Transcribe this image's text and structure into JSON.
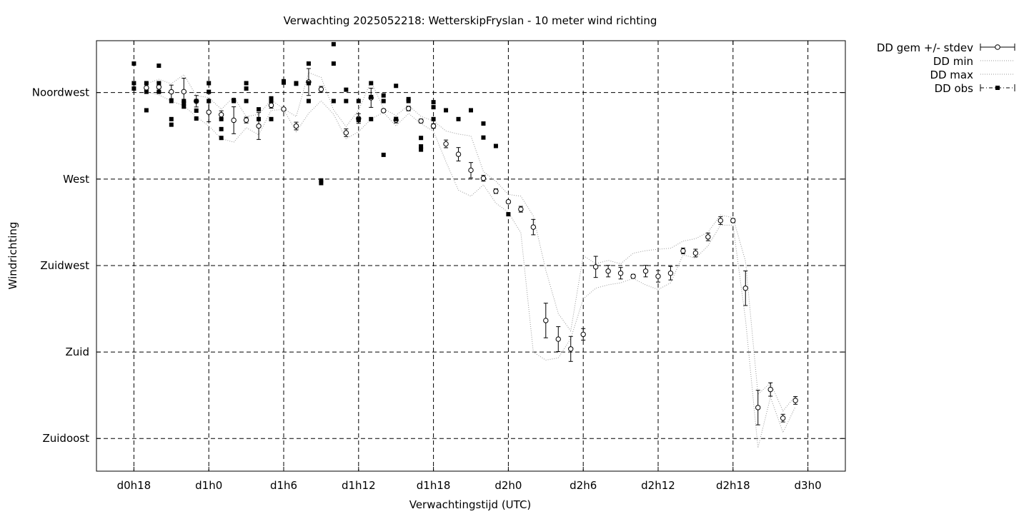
{
  "chart_data": {
    "type": "line",
    "title": "Verwachting 2025052218: WetterskipFryslan - 10 meter wind richting",
    "xlabel": "Verwachtingstijd (UTC)",
    "ylabel": "Windrichting",
    "xlim": [
      -3,
      57
    ],
    "ylim": [
      118,
      342
    ],
    "x_ticks": [
      {
        "x": 0,
        "label": "d0h18"
      },
      {
        "x": 6,
        "label": "d1h0"
      },
      {
        "x": 12,
        "label": "d1h6"
      },
      {
        "x": 18,
        "label": "d1h12"
      },
      {
        "x": 24,
        "label": "d1h18"
      },
      {
        "x": 30,
        "label": "d2h0"
      },
      {
        "x": 36,
        "label": "d2h6"
      },
      {
        "x": 42,
        "label": "d2h12"
      },
      {
        "x": 48,
        "label": "d2h18"
      },
      {
        "x": 54,
        "label": "d3h0"
      }
    ],
    "y_ticks": [
      {
        "y": 135,
        "label": "Zuidoost"
      },
      {
        "y": 180,
        "label": "Zuid"
      },
      {
        "y": 225,
        "label": "Zuidwest"
      },
      {
        "y": 270,
        "label": "West"
      },
      {
        "y": 315,
        "label": "Noordwest"
      }
    ],
    "grid": true,
    "legend_position": "outside-top-right",
    "legend": [
      "DD gem +/- stdev",
      "DD min",
      "DD max",
      "DD obs"
    ],
    "series": [
      {
        "name": "DD gem +/- stdev",
        "style": "circles with error bars",
        "points": [
          {
            "x": 1,
            "y": 317.5,
            "sd": 1.5
          },
          {
            "x": 2,
            "y": 317.9,
            "sd": 2.5
          },
          {
            "x": 3,
            "y": 315.4,
            "sd": 3.5
          },
          {
            "x": 4,
            "y": 315.5,
            "sd": 7
          },
          {
            "x": 5,
            "y": 310.5,
            "sd": 3
          },
          {
            "x": 6,
            "y": 304.8,
            "sd": 5
          },
          {
            "x": 7,
            "y": 303.5,
            "sd": 2
          },
          {
            "x": 8,
            "y": 300.6,
            "sd": 7
          },
          {
            "x": 9,
            "y": 300.7,
            "sd": 1.5
          },
          {
            "x": 10,
            "y": 297.6,
            "sd": 7
          },
          {
            "x": 11,
            "y": 308.4,
            "sd": 1.5
          },
          {
            "x": 12,
            "y": 306.4,
            "sd": 0.2
          },
          {
            "x": 13,
            "y": 297.6,
            "sd": 2
          },
          {
            "x": 14,
            "y": 320.5,
            "sd": 7
          },
          {
            "x": 15,
            "y": 316.7,
            "sd": 1.5
          },
          {
            "x": 17,
            "y": 294.1,
            "sd": 2
          },
          {
            "x": 18,
            "y": 301.5,
            "sd": 2.5
          },
          {
            "x": 19,
            "y": 312.3,
            "sd": 5
          },
          {
            "x": 20,
            "y": 305.6,
            "sd": 0.8
          },
          {
            "x": 21,
            "y": 300.7,
            "sd": 1.5
          },
          {
            "x": 22,
            "y": 306.7,
            "sd": 1.2
          },
          {
            "x": 23,
            "y": 300.2,
            "sd": 1
          },
          {
            "x": 24,
            "y": 297.6,
            "sd": 1.2
          },
          {
            "x": 25,
            "y": 288.3,
            "sd": 2
          },
          {
            "x": 26,
            "y": 282.9,
            "sd": 3.5
          },
          {
            "x": 27,
            "y": 274.6,
            "sd": 4
          },
          {
            "x": 28,
            "y": 270.4,
            "sd": 1.5
          },
          {
            "x": 29,
            "y": 263.7,
            "sd": 1.2
          },
          {
            "x": 30,
            "y": 258.2,
            "sd": 0.8
          },
          {
            "x": 31,
            "y": 254.3,
            "sd": 1.5
          },
          {
            "x": 32,
            "y": 245.0,
            "sd": 4
          },
          {
            "x": 33,
            "y": 196.4,
            "sd": 9
          },
          {
            "x": 34,
            "y": 186.7,
            "sd": 6.5
          },
          {
            "x": 35,
            "y": 181.6,
            "sd": 6.5
          },
          {
            "x": 36,
            "y": 189.2,
            "sd": 3
          },
          {
            "x": 37,
            "y": 224.3,
            "sd": 5.5
          },
          {
            "x": 38,
            "y": 222.1,
            "sd": 3
          },
          {
            "x": 39,
            "y": 221.0,
            "sd": 3
          },
          {
            "x": 40,
            "y": 219.4,
            "sd": 1
          },
          {
            "x": 41,
            "y": 222.1,
            "sd": 3
          },
          {
            "x": 42,
            "y": 219.4,
            "sd": 3
          },
          {
            "x": 43,
            "y": 221.0,
            "sd": 3.5
          },
          {
            "x": 44,
            "y": 232.6,
            "sd": 1.5
          },
          {
            "x": 45,
            "y": 231.5,
            "sd": 2
          },
          {
            "x": 46,
            "y": 239.9,
            "sd": 2
          },
          {
            "x": 47,
            "y": 248.4,
            "sd": 2
          },
          {
            "x": 48,
            "y": 248.4,
            "sd": 1
          },
          {
            "x": 49,
            "y": 213.2,
            "sd": 9
          },
          {
            "x": 50,
            "y": 151.1,
            "sd": 9
          },
          {
            "x": 51,
            "y": 160.5,
            "sd": 3.5
          },
          {
            "x": 52,
            "y": 145.6,
            "sd": 2
          },
          {
            "x": 53,
            "y": 154.8,
            "sd": 2
          }
        ]
      },
      {
        "name": "DD min",
        "style": "dotted",
        "x": [
          1,
          2,
          3,
          4,
          5,
          6,
          7,
          8,
          9,
          10,
          11,
          12,
          13,
          14,
          15,
          16,
          17,
          18,
          19,
          20,
          21,
          22,
          23,
          24,
          25,
          26,
          27,
          28,
          29,
          30,
          31,
          32,
          33,
          34,
          35,
          36,
          37,
          38,
          39,
          40,
          41,
          42,
          43,
          44,
          45,
          46,
          47,
          48,
          49,
          50,
          51,
          52,
          53
        ],
        "y": [
          315.4,
          313.8,
          310.6,
          308.1,
          302.5,
          297.6,
          291.0,
          289.2,
          296.7,
          293.0,
          305.8,
          306.2,
          294.6,
          304.2,
          310.7,
          303.7,
          291.0,
          294.6,
          301.2,
          304.7,
          297.6,
          304.2,
          298.8,
          294.9,
          279.0,
          264.2,
          261.1,
          267.0,
          257.5,
          252.7,
          242.0,
          180.0,
          175.8,
          176.9,
          187.0,
          207.6,
          213.2,
          215.0,
          216.0,
          218.3,
          214.9,
          212.5,
          216.0,
          230.6,
          228.8,
          235.3,
          246.0,
          246.0,
          196.9,
          130.1,
          156.5,
          138.1,
          151.6
        ]
      },
      {
        "name": "DD max",
        "style": "dotted",
        "x": [
          1,
          2,
          3,
          4,
          5,
          6,
          7,
          8,
          9,
          10,
          11,
          12,
          13,
          14,
          15,
          16,
          17,
          18,
          19,
          20,
          21,
          22,
          23,
          24,
          25,
          26,
          27,
          28,
          29,
          30,
          31,
          32,
          33,
          34,
          35,
          36,
          37,
          38,
          39,
          40,
          41,
          42,
          43,
          44,
          45,
          46,
          47,
          48,
          49,
          50,
          51,
          52,
          53
        ],
        "y": [
          319.6,
          321.9,
          319.6,
          324.3,
          313.4,
          312.4,
          306.3,
          312.7,
          302.5,
          303.7,
          311.1,
          306.6,
          302.5,
          325.4,
          322.9,
          305.9,
          297.3,
          305.8,
          320.9,
          306.6,
          303.1,
          308.3,
          302.6,
          300.3,
          295.0,
          293.4,
          292.4,
          273.9,
          268.9,
          262.0,
          261.1,
          250.8,
          222.6,
          200.0,
          191.0,
          230.2,
          225.9,
          227.7,
          225.9,
          231.4,
          232.7,
          233.5,
          234.0,
          237.7,
          239.0,
          242.4,
          251.3,
          249.9,
          227.2,
          158.0,
          163.9,
          149.3,
          157.2
        ]
      },
      {
        "name": "DD obs",
        "style": "filled squares",
        "points": [
          [
            0,
            330.1
          ],
          [
            0,
            319.9
          ],
          [
            0,
            317.1
          ],
          [
            1,
            319.9
          ],
          [
            1,
            315.4
          ],
          [
            1,
            305.8
          ],
          [
            2,
            329.0
          ],
          [
            2,
            319.9
          ],
          [
            2,
            315.4
          ],
          [
            3,
            310.6
          ],
          [
            3,
            301.2
          ],
          [
            3,
            298.3
          ],
          [
            4,
            310.6
          ],
          [
            4,
            309.6
          ],
          [
            4,
            307.7
          ],
          [
            5,
            310.6
          ],
          [
            5,
            305.6
          ],
          [
            5,
            301.5
          ],
          [
            6,
            319.9
          ],
          [
            6,
            315.4
          ],
          [
            6,
            310.6
          ],
          [
            7,
            301.2
          ],
          [
            7,
            296.0
          ],
          [
            7,
            291.4
          ],
          [
            8,
            310.6
          ],
          [
            8,
            311.1
          ],
          [
            9,
            319.9
          ],
          [
            9,
            317.1
          ],
          [
            9,
            310.6
          ],
          [
            10,
            306.3
          ],
          [
            10,
            301.2
          ],
          [
            11,
            312.0
          ],
          [
            11,
            310.6
          ],
          [
            11,
            301.2
          ],
          [
            12,
            320.9
          ],
          [
            12,
            320.2
          ],
          [
            13,
            319.6
          ],
          [
            13,
            319.9
          ],
          [
            14,
            330.1
          ],
          [
            14,
            319.9
          ],
          [
            14,
            310.6
          ],
          [
            15,
            269.3
          ],
          [
            15,
            267.9
          ],
          [
            16,
            340.2
          ],
          [
            16,
            330.1
          ],
          [
            16,
            310.6
          ],
          [
            17,
            316.5
          ],
          [
            17,
            310.6
          ],
          [
            18,
            301.2
          ],
          [
            18,
            300.7
          ],
          [
            18,
            310.6
          ],
          [
            19,
            319.9
          ],
          [
            19,
            312.7
          ],
          [
            19,
            301.2
          ],
          [
            20,
            313.5
          ],
          [
            20,
            310.6
          ],
          [
            20,
            282.6
          ],
          [
            21,
            318.5
          ],
          [
            21,
            301.2
          ],
          [
            22,
            311.6
          ],
          [
            22,
            310.6
          ],
          [
            23,
            291.4
          ],
          [
            23,
            287.0
          ],
          [
            23,
            285.3
          ],
          [
            24,
            310.0
          ],
          [
            24,
            307.4
          ],
          [
            24,
            301.2
          ],
          [
            25,
            305.8
          ],
          [
            26,
            301.2
          ],
          [
            27,
            305.8
          ],
          [
            28,
            298.9
          ],
          [
            28,
            291.6
          ],
          [
            29,
            287.2
          ],
          [
            30,
            251.7
          ]
        ],
        "x_units_note": "x in hours relative to d0h18"
      }
    ]
  }
}
